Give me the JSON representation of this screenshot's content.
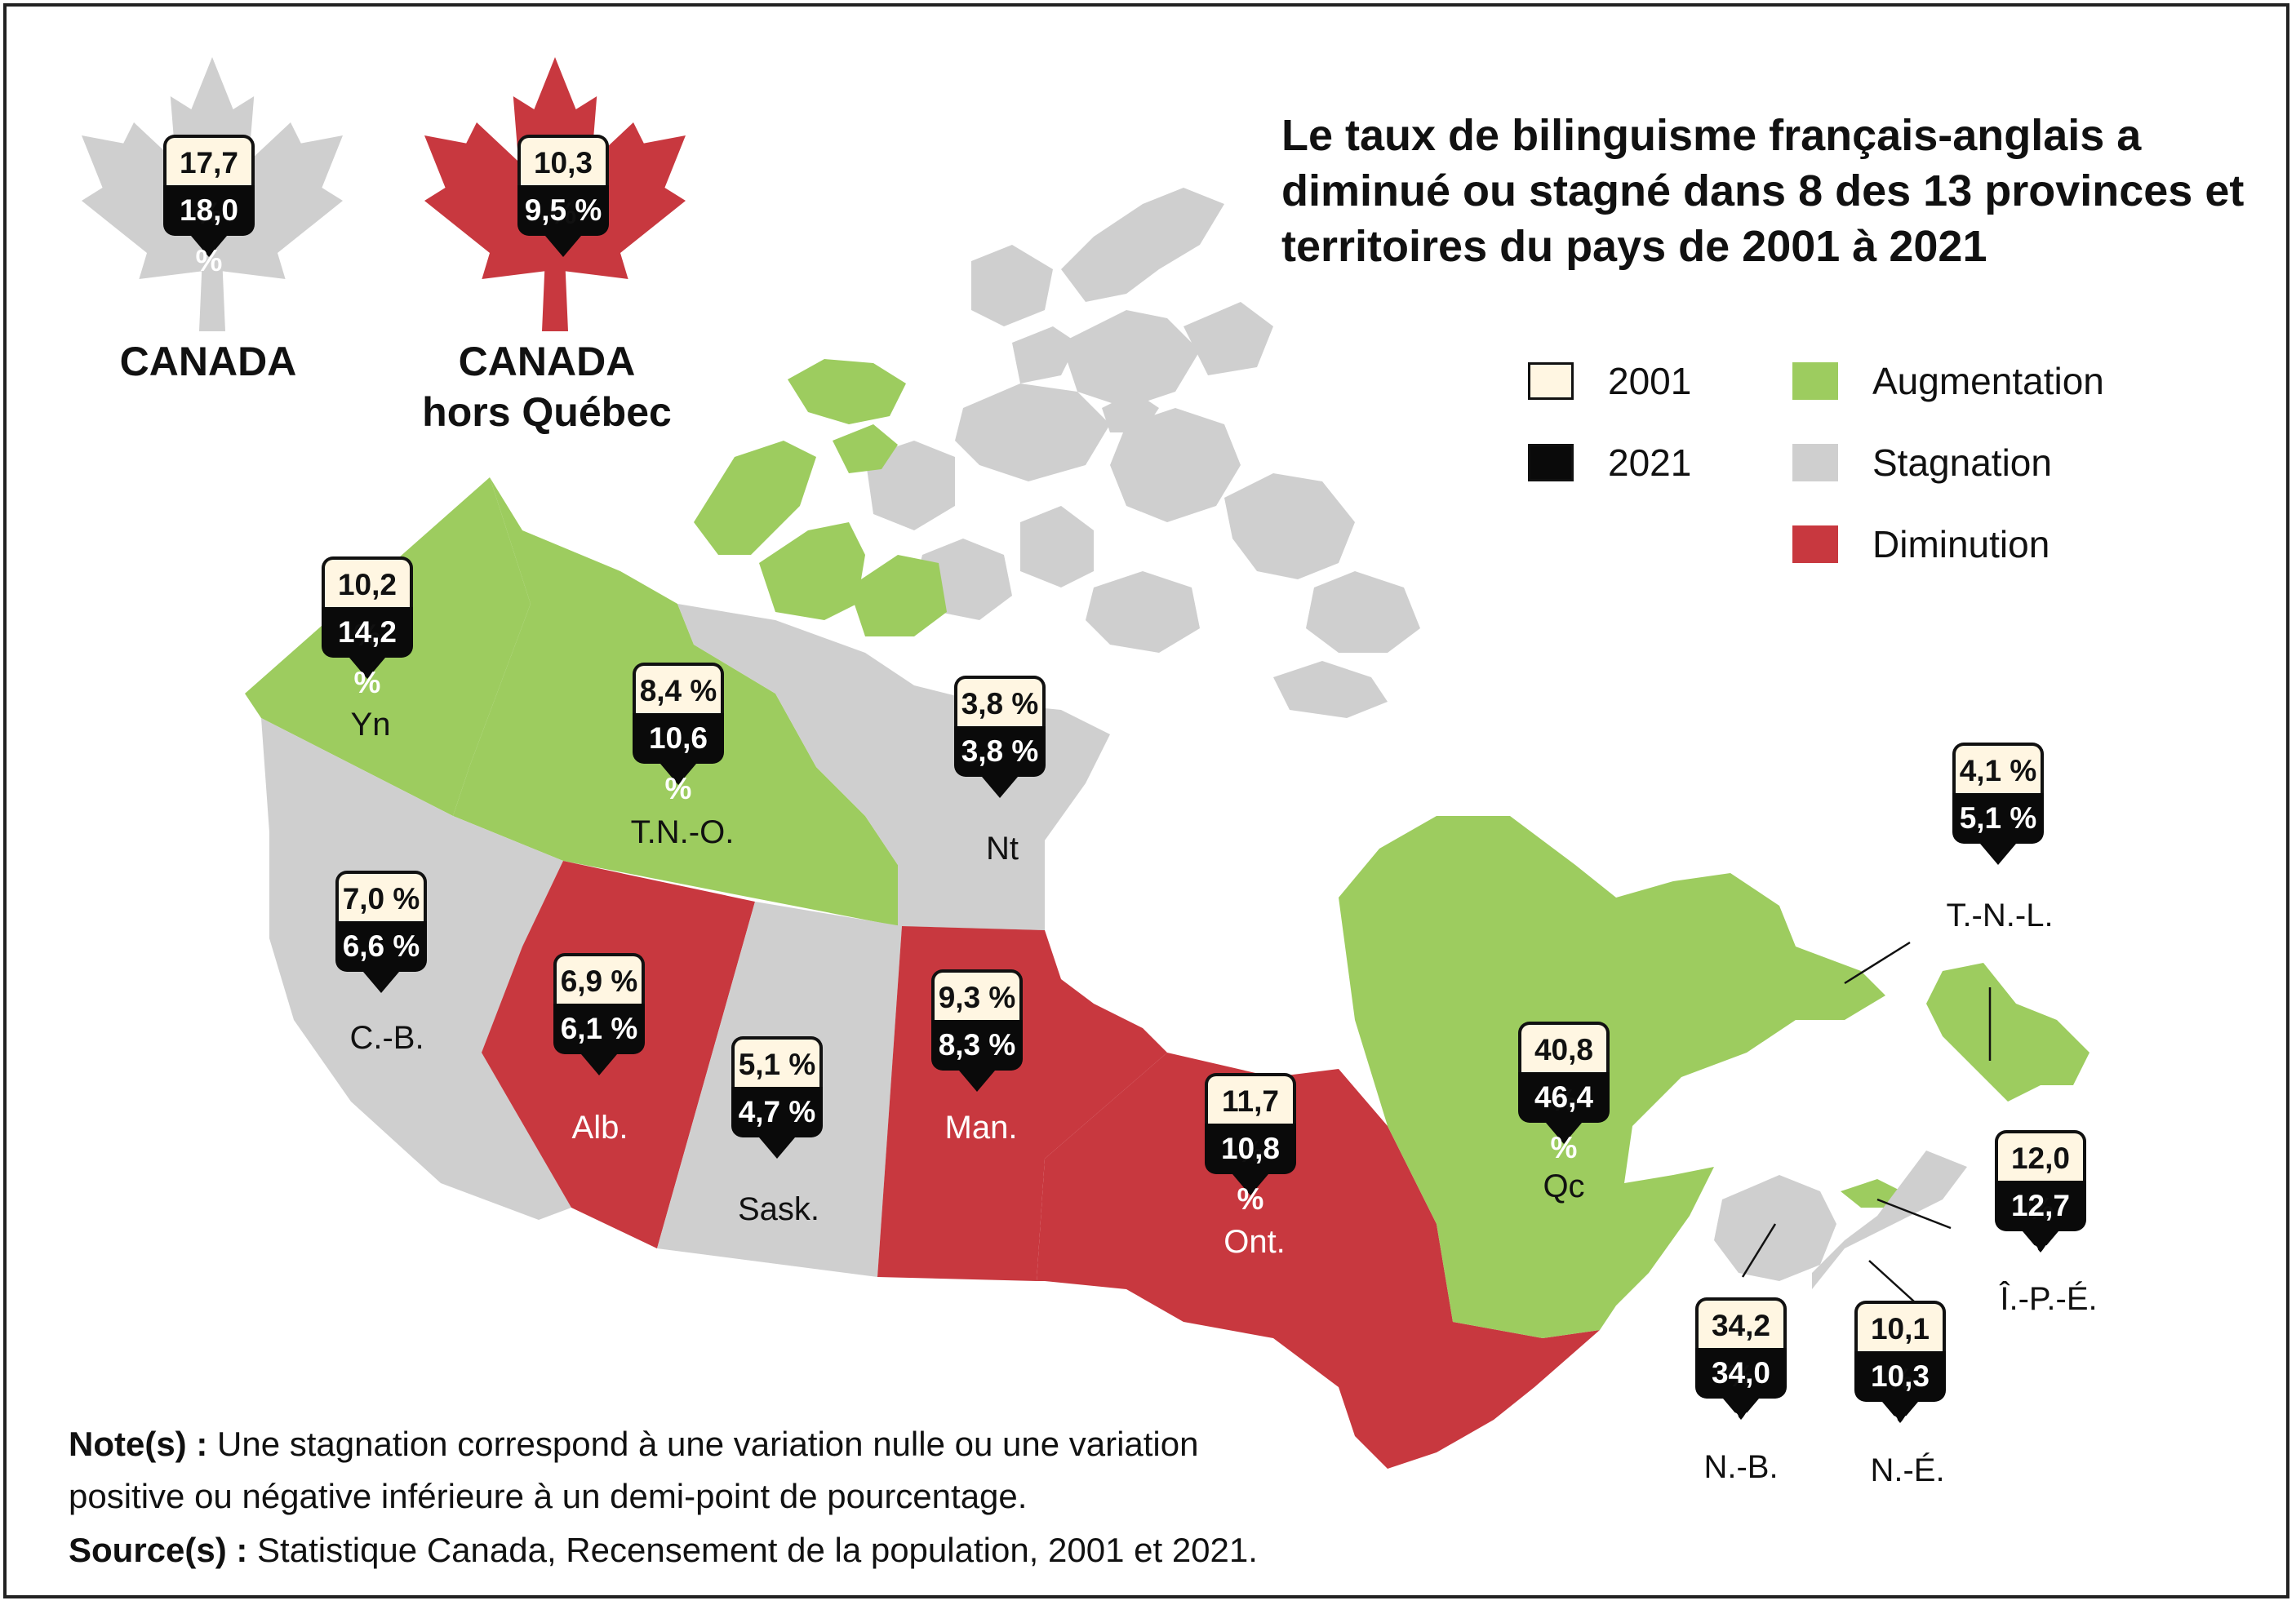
{
  "title": "Le taux de bilinguisme français-anglais a diminué ou stagné dans 8 des 13 provinces et territoires du pays de 2001 à 2021",
  "legend": {
    "years": [
      {
        "label": "2001",
        "color": "#fff6e2"
      },
      {
        "label": "2021",
        "color": "#0a0a0a"
      }
    ],
    "trends": [
      {
        "label": "Augmentation",
        "color": "#9dcc5f"
      },
      {
        "label": "Stagnation",
        "color": "#cfcfcf"
      },
      {
        "label": "Diminution",
        "color": "#c8383f"
      }
    ]
  },
  "national": [
    {
      "name": "CANADA",
      "v2001": "17,7 %",
      "v2021": "18,0 %",
      "trend": "Stagnation"
    },
    {
      "name": "CANADA hors Québec",
      "v2001": "10,3 %",
      "v2021": "9,5 %",
      "trend": "Diminution"
    }
  ],
  "regions": [
    {
      "abbr": "Yn",
      "v2001": "10,2 %",
      "v2021": "14,2 %",
      "trend": "Augmentation"
    },
    {
      "abbr": "T.N.-O.",
      "v2001": "8,4 %",
      "v2021": "10,6 %",
      "trend": "Augmentation"
    },
    {
      "abbr": "Nt",
      "v2001": "3,8 %",
      "v2021": "3,8 %",
      "trend": "Stagnation"
    },
    {
      "abbr": "C.-B.",
      "v2001": "7,0 %",
      "v2021": "6,6 %",
      "trend": "Stagnation"
    },
    {
      "abbr": "Alb.",
      "v2001": "6,9 %",
      "v2021": "6,1 %",
      "trend": "Diminution"
    },
    {
      "abbr": "Sask.",
      "v2001": "5,1 %",
      "v2021": "4,7 %",
      "trend": "Stagnation"
    },
    {
      "abbr": "Man.",
      "v2001": "9,3 %",
      "v2021": "8,3 %",
      "trend": "Diminution"
    },
    {
      "abbr": "Ont.",
      "v2001": "11,7 %",
      "v2021": "10,8 %",
      "trend": "Diminution"
    },
    {
      "abbr": "Qc",
      "v2001": "40,8 %",
      "v2021": "46,4 %",
      "trend": "Augmentation"
    },
    {
      "abbr": "T.-N.-L.",
      "v2001": "4,1 %",
      "v2021": "5,1 %",
      "trend": "Augmentation"
    },
    {
      "abbr": "Î.-P.-É.",
      "v2001": "12,0 %",
      "v2021": "12,7 %",
      "trend": "Augmentation"
    },
    {
      "abbr": "N.-B.",
      "v2001": "34,2 %",
      "v2021": "34,0 %",
      "trend": "Stagnation"
    },
    {
      "abbr": "N.-É.",
      "v2001": "10,1 %",
      "v2021": "10,3 %",
      "trend": "Stagnation"
    }
  ],
  "note": {
    "label": "Note(s) :",
    "text": "Une stagnation correspond à une variation nulle ou une variation positive ou négative inférieure à un demi-point de pourcentage."
  },
  "source": {
    "label": "Source(s) :",
    "text": "Statistique Canada, Recensement de la population, 2001 et 2021."
  }
}
